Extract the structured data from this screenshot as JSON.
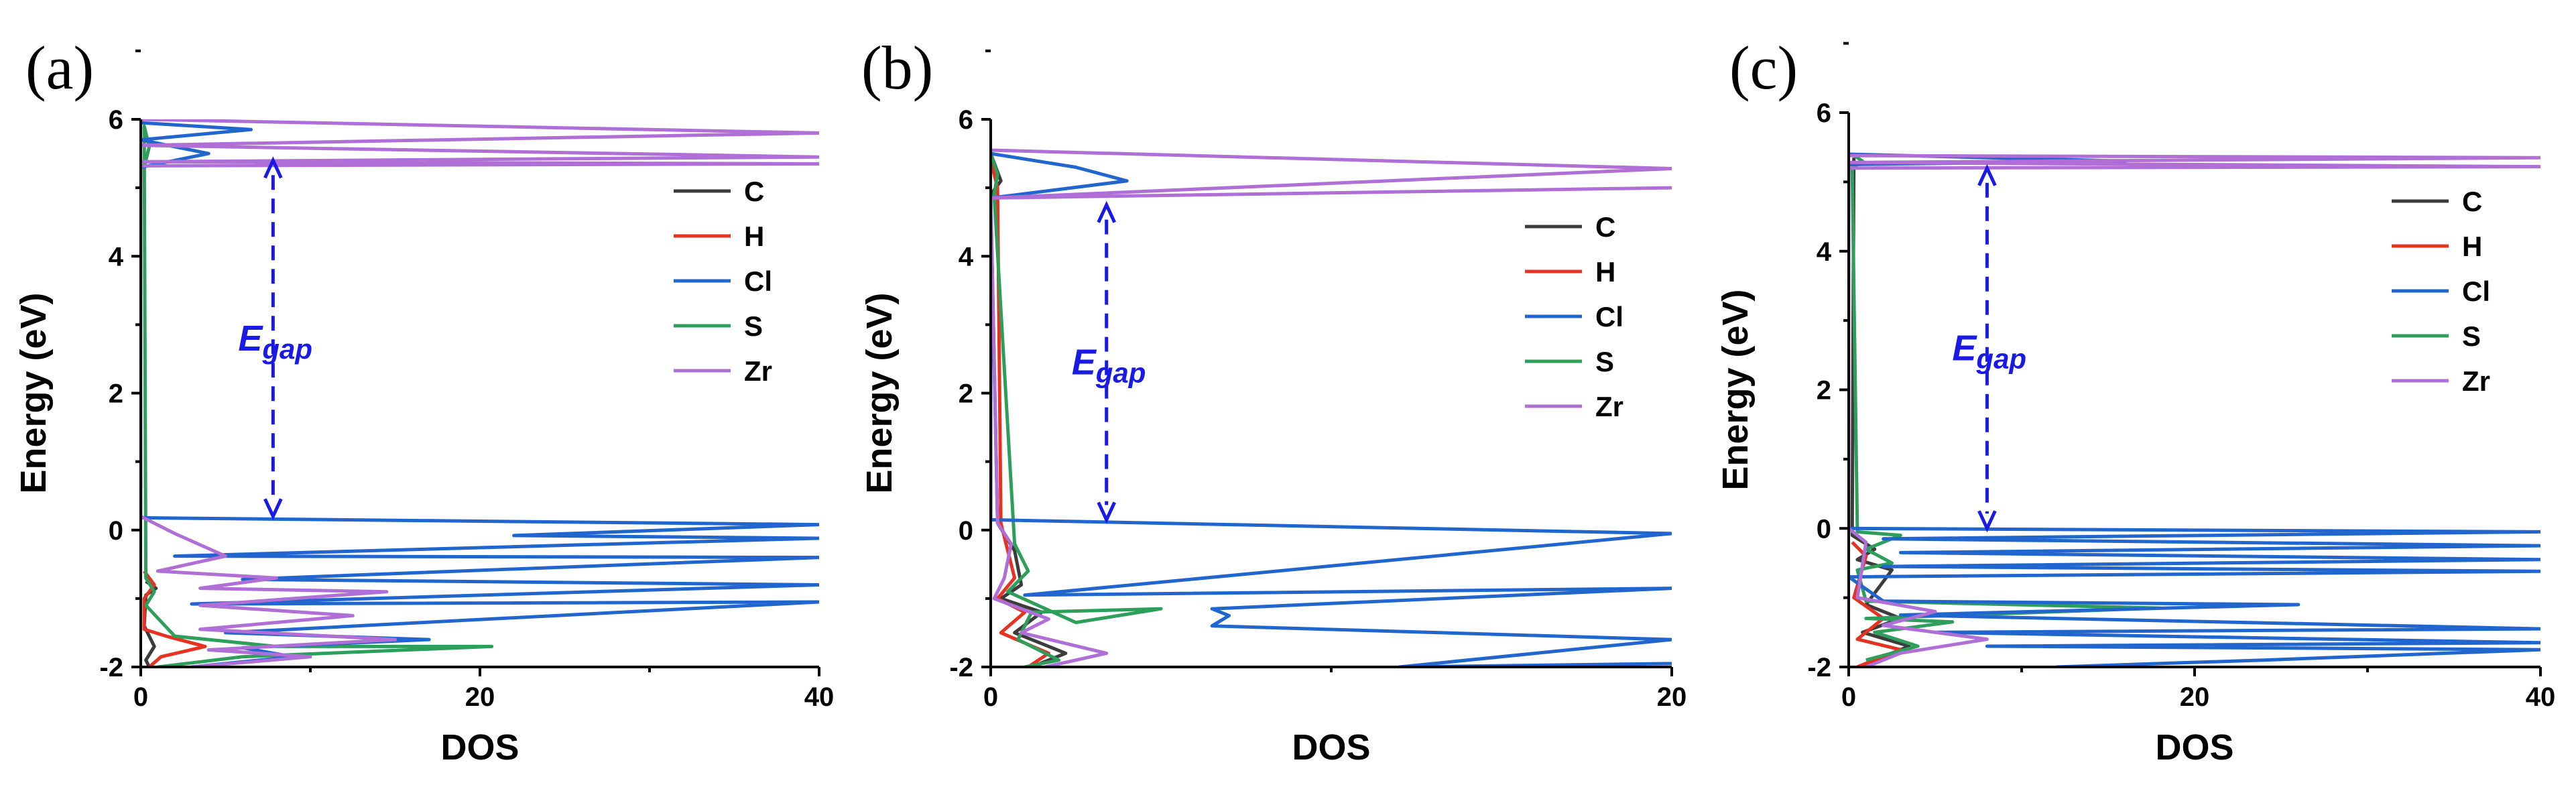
{
  "chart_data": [
    {
      "panel": "(a)",
      "type": "line",
      "orientation": "horizontal-dos",
      "xlabel": "DOS",
      "ylabel": "Energy (eV)",
      "xlim": [
        0,
        40
      ],
      "ylim": [
        -2,
        6
      ],
      "xticks": [
        "0",
        "20",
        "40"
      ],
      "yticks": [
        "-2",
        "0",
        "2",
        "4",
        "6"
      ],
      "egap": {
        "label": "E",
        "sub": "gap",
        "from": 5.4,
        "to": 0.2,
        "x": 7.8
      },
      "legend": [
        "C",
        "H",
        "Cl",
        "S",
        "Zr"
      ],
      "series": [
        {
          "name": "C",
          "color": "#3c3c3c",
          "points": [
            [
              0.3,
              -0.75
            ],
            [
              0.9,
              -0.85
            ],
            [
              0.3,
              -0.95
            ],
            [
              0.2,
              -1.4
            ],
            [
              0.8,
              -1.7
            ],
            [
              0.3,
              -1.9
            ],
            [
              0.5,
              -2.0
            ]
          ]
        },
        {
          "name": "H",
          "color": "#e63222",
          "points": [
            [
              0.2,
              -0.6
            ],
            [
              0.8,
              -0.8
            ],
            [
              0.2,
              -1.0
            ],
            [
              0.2,
              -1.45
            ],
            [
              1.5,
              -1.55
            ],
            [
              3.8,
              -1.7
            ],
            [
              1.2,
              -1.85
            ],
            [
              0.5,
              -2.0
            ]
          ]
        },
        {
          "name": "S",
          "color": "#2e9e5b",
          "points": [
            [
              0.2,
              5.3
            ],
            [
              0.5,
              5.6
            ],
            [
              0.2,
              5.9
            ],
            [
              0.3,
              -0.7
            ],
            [
              0.8,
              -0.9
            ],
            [
              0.3,
              -1.1
            ],
            [
              2,
              -1.55
            ],
            [
              8,
              -1.7
            ],
            [
              20.7,
              -1.7
            ],
            [
              6,
              -1.85
            ],
            [
              1,
              -2.0
            ]
          ]
        },
        {
          "name": "Cl",
          "color": "#2166cf",
          "points": [
            [
              0,
              5.95
            ],
            [
              6.5,
              5.85
            ],
            [
              0,
              5.7
            ],
            [
              4,
              5.5
            ],
            [
              0,
              5.3
            ],
            [
              0,
              0.18
            ],
            [
              40,
              0.08
            ],
            [
              22,
              -0.08
            ],
            [
              40,
              -0.12
            ],
            [
              2,
              -0.38
            ],
            [
              40,
              -0.4
            ],
            [
              6,
              -0.72
            ],
            [
              40,
              -0.8
            ],
            [
              3,
              -1.08
            ],
            [
              40,
              -1.05
            ],
            [
              5,
              -1.5
            ],
            [
              17,
              -1.6
            ],
            [
              6,
              -1.72
            ],
            [
              9,
              -1.85
            ],
            [
              3,
              -2.0
            ]
          ]
        },
        {
          "name": "Zr",
          "color": "#b06fd6",
          "points": [
            [
              0,
              6
            ],
            [
              40,
              5.8
            ],
            [
              0,
              5.62
            ],
            [
              40,
              5.45
            ],
            [
              0,
              5.38
            ],
            [
              40,
              5.35
            ],
            [
              0,
              5.32
            ],
            [
              0,
              0.2
            ],
            [
              2,
              -0.05
            ],
            [
              5,
              -0.38
            ],
            [
              1,
              -0.6
            ],
            [
              8,
              -0.7
            ],
            [
              3.5,
              -0.85
            ],
            [
              14.5,
              -0.9
            ],
            [
              3.5,
              -1.1
            ],
            [
              12.5,
              -1.25
            ],
            [
              3.5,
              -1.45
            ],
            [
              15,
              -1.6
            ],
            [
              4,
              -1.75
            ],
            [
              10,
              -1.85
            ],
            [
              3,
              -2.0
            ]
          ]
        }
      ]
    },
    {
      "panel": "(b)",
      "type": "line",
      "orientation": "horizontal-dos",
      "xlabel": "DOS",
      "ylabel": "Energy (eV)",
      "xlim": [
        0,
        20
      ],
      "ylim": [
        -2,
        6
      ],
      "xticks": [
        "0",
        "20"
      ],
      "yticks": [
        "-2",
        "0",
        "2",
        "4",
        "6"
      ],
      "egap": {
        "label": "E",
        "sub": "gap",
        "from": 4.75,
        "to": 0.15,
        "x": 3.4
      },
      "legend": [
        "C",
        "H",
        "Cl",
        "S",
        "Zr"
      ],
      "series": [
        {
          "name": "C",
          "color": "#3c3c3c",
          "points": [
            [
              0,
              5.5
            ],
            [
              0.3,
              5.1
            ],
            [
              0,
              4.9
            ],
            [
              0.2,
              0.1
            ],
            [
              0.7,
              -0.3
            ],
            [
              0.9,
              -0.8
            ],
            [
              0.3,
              -1.0
            ],
            [
              1.5,
              -1.2
            ],
            [
              0.7,
              -1.5
            ],
            [
              2.2,
              -1.8
            ],
            [
              1.2,
              -2.0
            ]
          ]
        },
        {
          "name": "H",
          "color": "#e63222",
          "points": [
            [
              0,
              5.4
            ],
            [
              0.2,
              5.0
            ],
            [
              0.3,
              0.1
            ],
            [
              0.5,
              -0.3
            ],
            [
              0.7,
              -0.7
            ],
            [
              0.2,
              -1.0
            ],
            [
              1,
              -1.2
            ],
            [
              0.3,
              -1.5
            ],
            [
              1.7,
              -1.8
            ],
            [
              1.1,
              -2.0
            ]
          ]
        },
        {
          "name": "S",
          "color": "#2e9e5b",
          "points": [
            [
              0,
              5.5
            ],
            [
              0.2,
              5.2
            ],
            [
              0.1,
              4.9
            ],
            [
              0.7,
              -0.2
            ],
            [
              1.1,
              -0.6
            ],
            [
              0.5,
              -0.9
            ],
            [
              2.5,
              -1.35
            ],
            [
              5,
              -1.15
            ],
            [
              1.2,
              -1.2
            ],
            [
              0.8,
              -1.6
            ],
            [
              2,
              -1.9
            ],
            [
              1,
              -2.0
            ]
          ]
        },
        {
          "name": "Cl",
          "color": "#2166cf",
          "points": [
            [
              0,
              5.5
            ],
            [
              2.5,
              5.3
            ],
            [
              4,
              5.1
            ],
            [
              0,
              4.85
            ],
            [
              0,
              0.15
            ],
            [
              20,
              -0.05
            ],
            [
              1,
              -0.95
            ],
            [
              20,
              -0.85
            ],
            [
              6.5,
              -1.15
            ],
            [
              7,
              -1.25
            ],
            [
              6.5,
              -1.4
            ],
            [
              20,
              -1.6
            ],
            [
              12,
              -2.0
            ],
            [
              20,
              -1.95
            ]
          ]
        },
        {
          "name": "Zr",
          "color": "#b06fd6",
          "points": [
            [
              0,
              5.55
            ],
            [
              20,
              5.28
            ],
            [
              0,
              4.85
            ],
            [
              20,
              5.0
            ],
            [
              0,
              4.85
            ],
            [
              0.2,
              0.1
            ],
            [
              0.6,
              -0.2
            ],
            [
              0.4,
              -0.7
            ],
            [
              0.1,
              -1.0
            ],
            [
              1.7,
              -1.3
            ],
            [
              0.9,
              -1.5
            ],
            [
              3.4,
              -1.8
            ],
            [
              1.6,
              -2.0
            ]
          ]
        }
      ]
    },
    {
      "panel": "(c)",
      "type": "line",
      "orientation": "horizontal-dos",
      "xlabel": "DOS",
      "ylabel": "Energy (eV)",
      "xlim": [
        0,
        40
      ],
      "ylim": [
        -2,
        6
      ],
      "xticks": [
        "0",
        "20",
        "40"
      ],
      "yticks": [
        "-2",
        "0",
        "2",
        "4",
        "6"
      ],
      "egap": {
        "label": "E",
        "sub": "gap",
        "from": 5.2,
        "to": 0.0,
        "x": 8
      },
      "legend": [
        "C",
        "H",
        "Cl",
        "S",
        "Zr"
      ],
      "series": [
        {
          "name": "C",
          "color": "#3c3c3c",
          "points": [
            [
              0.3,
              5.35
            ],
            [
              0.2,
              -0.1
            ],
            [
              1.5,
              -0.3
            ],
            [
              0.5,
              -0.45
            ],
            [
              2.5,
              -0.6
            ],
            [
              1,
              -1.1
            ],
            [
              3,
              -1.3
            ],
            [
              0.8,
              -1.5
            ],
            [
              3.5,
              -1.7
            ],
            [
              1.5,
              -1.9
            ],
            [
              0.5,
              -2.0
            ]
          ]
        },
        {
          "name": "H",
          "color": "#e63222",
          "points": [
            [
              0.2,
              -0.2
            ],
            [
              1,
              -0.4
            ],
            [
              0.3,
              -1.0
            ],
            [
              2,
              -1.3
            ],
            [
              0.5,
              -1.6
            ],
            [
              3,
              -1.75
            ],
            [
              1,
              -1.95
            ],
            [
              0.5,
              -2.0
            ]
          ]
        },
        {
          "name": "S",
          "color": "#2e9e5b",
          "points": [
            [
              0.2,
              5.4
            ],
            [
              0.8,
              5.3
            ],
            [
              0.2,
              5.2
            ],
            [
              0.5,
              -0.05
            ],
            [
              3,
              -0.1
            ],
            [
              1,
              -0.3
            ],
            [
              2.5,
              -0.5
            ],
            [
              0.5,
              -0.6
            ],
            [
              1,
              -1.05
            ],
            [
              18,
              -1.15
            ],
            [
              1,
              -1.3
            ],
            [
              6,
              -1.35
            ],
            [
              1.5,
              -1.5
            ],
            [
              4,
              -1.7
            ],
            [
              1,
              -1.9
            ]
          ]
        },
        {
          "name": "Cl",
          "color": "#2166cf",
          "points": [
            [
              0,
              5.4
            ],
            [
              16,
              5.3
            ],
            [
              0,
              5.25
            ],
            [
              0,
              0
            ],
            [
              40,
              -0.05
            ],
            [
              2,
              -0.15
            ],
            [
              40,
              -0.25
            ],
            [
              3,
              -0.35
            ],
            [
              40,
              -0.45
            ],
            [
              2,
              -0.55
            ],
            [
              40,
              -0.62
            ],
            [
              0,
              -0.7
            ],
            [
              2,
              -1.05
            ],
            [
              26,
              -1.1
            ],
            [
              3,
              -1.25
            ],
            [
              40,
              -1.45
            ],
            [
              5,
              -1.5
            ],
            [
              40,
              -1.65
            ],
            [
              8,
              -1.7
            ],
            [
              40,
              -1.75
            ],
            [
              24,
              -1.9
            ],
            [
              12,
              -2.0
            ]
          ]
        },
        {
          "name": "Zr",
          "color": "#b06fd6",
          "points": [
            [
              0,
              5.38
            ],
            [
              40,
              5.35
            ],
            [
              0,
              5.28
            ],
            [
              40,
              5.22
            ],
            [
              0,
              5.2
            ],
            [
              0,
              0
            ],
            [
              1,
              -0.2
            ],
            [
              0.5,
              -1.0
            ],
            [
              5,
              -1.2
            ],
            [
              2,
              -1.4
            ],
            [
              8,
              -1.6
            ],
            [
              3,
              -1.8
            ],
            [
              1,
              -2.0
            ]
          ]
        }
      ]
    }
  ]
}
